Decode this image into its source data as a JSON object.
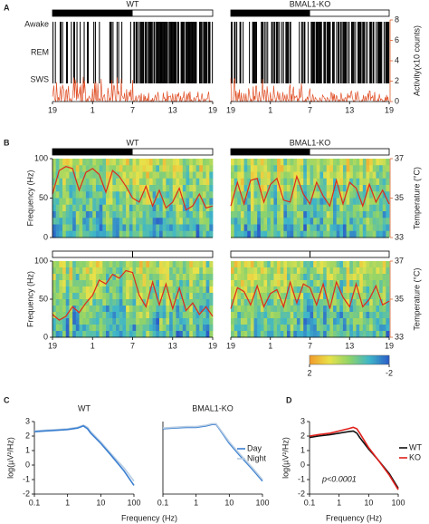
{
  "panel_labels": [
    "A",
    "B",
    "C",
    "D"
  ],
  "chart_data": [
    {
      "type": "hypnogram",
      "title": "WT",
      "title_color": "#000000",
      "bar": "LD",
      "dark_phase": [
        0,
        12
      ],
      "states": [
        "Awake",
        "REM",
        "SWS"
      ],
      "color": "#e0522a",
      "xlim": [
        0,
        24
      ],
      "xticks": [
        {
          "value": 0,
          "label": "19"
        },
        {
          "value": 6,
          "label": "1"
        },
        {
          "value": 12,
          "label": "7"
        },
        {
          "value": 18,
          "label": "13"
        },
        {
          "value": 24,
          "label": "19"
        }
      ]
    },
    {
      "type": "hypnogram",
      "title": "BMAL1-KO",
      "title_color": "#e0201c",
      "bar": "LD",
      "dark_phase": [
        0,
        12
      ],
      "color": "#e0522a",
      "xlim": [
        0,
        24
      ],
      "xticks": [
        {
          "value": 0,
          "label": "19"
        },
        {
          "value": 6,
          "label": "1"
        },
        {
          "value": 12,
          "label": "7"
        },
        {
          "value": 18,
          "label": "13"
        },
        {
          "value": 24,
          "label": "19"
        }
      ],
      "y2label": "Activity(x10 counts)",
      "y2lim": [
        0,
        8
      ],
      "y2ticks": [
        0,
        2,
        4,
        6,
        8
      ],
      "y2color": "#e0602a"
    },
    {
      "type": "spectrogram",
      "title": "WT",
      "title_color": "#000000",
      "bar": "LD",
      "dark_phase": [
        0,
        12
      ],
      "xlim": [
        0,
        24
      ],
      "ylabel": "Frequency (Hz)",
      "ylim": [
        0,
        100
      ],
      "yticks": [
        0,
        50,
        100
      ],
      "y2lim": [
        33,
        37
      ],
      "color": "#e02a1a",
      "x": [
        0,
        1,
        2,
        3,
        4,
        5,
        6,
        7,
        8,
        9,
        10,
        11,
        12,
        13,
        14,
        15,
        16,
        17,
        18,
        19,
        20,
        21,
        22,
        23,
        24
      ],
      "values": [
        35.2,
        36.4,
        36.6,
        36.5,
        35.4,
        36.3,
        36.5,
        36.2,
        35.3,
        36.4,
        36.1,
        35.6,
        35.0,
        34.8,
        35.6,
        34.6,
        35.4,
        34.5,
        34.8,
        35.5,
        34.4,
        34.6,
        35.2,
        34.5,
        34.6
      ]
    },
    {
      "type": "spectrogram",
      "title": "BMAL1-KO",
      "title_color": "#e0201c",
      "bar": "LD",
      "dark_phase": [
        0,
        12
      ],
      "xlim": [
        0,
        24
      ],
      "ylim": [
        0,
        100
      ],
      "y2label": "Temperature (°C)",
      "y2lim": [
        33,
        37
      ],
      "y2ticks": [
        33,
        35,
        37
      ],
      "y2color": "#e0602a",
      "color": "#e02a1a",
      "x": [
        0,
        1,
        2,
        3,
        4,
        5,
        6,
        7,
        8,
        9,
        10,
        11,
        12,
        13,
        14,
        15,
        16,
        17,
        18,
        19,
        20,
        21,
        22,
        23,
        24
      ],
      "values": [
        34.6,
        35.8,
        34.7,
        35.9,
        36.0,
        34.8,
        35.7,
        36.0,
        34.9,
        34.8,
        36.1,
        35.2,
        34.7,
        35.8,
        35.1,
        34.6,
        35.9,
        34.7,
        35.8,
        35.5,
        34.6,
        35.7,
        34.8,
        35.4,
        34.7
      ]
    },
    {
      "type": "spectrogram",
      "bar": "DD",
      "xlim": [
        0,
        24
      ],
      "ylabel": "Frequency (Hz)",
      "ylim": [
        0,
        100
      ],
      "yticks": [
        0,
        50,
        100
      ],
      "y2lim": [
        33,
        37
      ],
      "color": "#e02a1a",
      "xticks": [
        {
          "value": 0,
          "label": "19"
        },
        {
          "value": 6,
          "label": "1"
        },
        {
          "value": 12,
          "label": "7"
        },
        {
          "value": 18,
          "label": "13"
        },
        {
          "value": 24,
          "label": "19"
        }
      ],
      "x": [
        0,
        1,
        2,
        3,
        4,
        5,
        6,
        7,
        8,
        9,
        10,
        11,
        12,
        13,
        14,
        15,
        16,
        17,
        18,
        19,
        20,
        21,
        22,
        23,
        24
      ],
      "values": [
        34.2,
        33.9,
        34.1,
        34.6,
        34.3,
        34.8,
        35.2,
        36.0,
        35.8,
        36.3,
        36.1,
        36.5,
        36.4,
        35.2,
        34.6,
        35.9,
        34.7,
        35.8,
        34.5,
        35.6,
        34.4,
        34.8,
        34.2,
        34.6,
        34.1
      ]
    },
    {
      "type": "spectrogram",
      "bar": "DD",
      "xlim": [
        0,
        24
      ],
      "ylim": [
        0,
        100
      ],
      "y2label": "Temperature (°C)",
      "y2lim": [
        33,
        37
      ],
      "y2ticks": [
        33,
        35,
        37
      ],
      "y2color": "#e0602a",
      "color": "#e02a1a",
      "xticks": [
        {
          "value": 0,
          "label": "19"
        },
        {
          "value": 6,
          "label": "1"
        },
        {
          "value": 12,
          "label": "7"
        },
        {
          "value": 18,
          "label": "13"
        },
        {
          "value": 24,
          "label": "19"
        }
      ],
      "x": [
        0,
        1,
        2,
        3,
        4,
        5,
        6,
        7,
        8,
        9,
        10,
        11,
        12,
        13,
        14,
        15,
        16,
        17,
        18,
        19,
        20,
        21,
        22,
        23,
        24
      ],
      "values": [
        34.5,
        35.6,
        35.4,
        34.7,
        35.7,
        34.6,
        35.3,
        35.5,
        34.6,
        35.9,
        34.8,
        35.8,
        35.6,
        34.7,
        35.8,
        34.5,
        35.9,
        35.1,
        34.6,
        35.8,
        34.6,
        35.0,
        35.7,
        34.7,
        34.9
      ]
    },
    {
      "type": "colorbar",
      "xlim": [
        2,
        -2
      ],
      "xticks": [
        2,
        -2
      ],
      "colors": [
        "#f39a2a",
        "#e8e24a",
        "#8fd36a",
        "#3fb6c8",
        "#2a5cc8"
      ]
    },
    {
      "type": "line",
      "title": "WT",
      "title_color": "#000000",
      "xlabel": "Frequency (Hz)",
      "ylabel": "log(µV²/Hz)",
      "log_x": true,
      "xlim": [
        0.1,
        100
      ],
      "xticks": [
        0.1,
        1,
        10,
        100
      ],
      "ylim": [
        -2,
        3
      ],
      "yticks": [
        -2,
        -1,
        0,
        1,
        2,
        3
      ],
      "x": [
        0.1,
        0.2,
        0.5,
        1,
        2,
        3,
        4,
        5,
        10,
        20,
        50,
        100
      ],
      "series": [
        {
          "color": "#b8cde3",
          "values": [
            2.35,
            2.4,
            2.45,
            2.5,
            2.6,
            2.75,
            2.6,
            2.3,
            1.6,
            0.8,
            -0.2,
            -1.1
          ]
        },
        {
          "color": "#3a7fd0",
          "values": [
            2.3,
            2.35,
            2.4,
            2.45,
            2.55,
            2.7,
            2.5,
            2.2,
            1.5,
            0.7,
            -0.4,
            -1.4
          ]
        }
      ]
    },
    {
      "type": "line",
      "title": "BMAL1-KO",
      "title_color": "#e0201c",
      "log_x": true,
      "xlim": [
        0.1,
        100
      ],
      "xticks": [
        0.1,
        1,
        10,
        100
      ],
      "ylim": [
        -2,
        3
      ],
      "legend": "top-right",
      "x": [
        0.1,
        0.2,
        0.5,
        1,
        2,
        3,
        4,
        5,
        10,
        20,
        50,
        100
      ],
      "series": [
        {
          "name": "Day",
          "color": "#3a7fd0",
          "values": [
            2.5,
            2.55,
            2.6,
            2.6,
            2.7,
            2.8,
            2.8,
            2.5,
            1.5,
            0.7,
            -0.3,
            -1.1
          ]
        },
        {
          "name": "Night",
          "color": "#b8cde3",
          "values": [
            2.55,
            2.6,
            2.65,
            2.65,
            2.75,
            2.85,
            2.85,
            2.55,
            1.6,
            0.8,
            -0.2,
            -1.0
          ]
        }
      ]
    },
    {
      "type": "line",
      "xlabel": "Frequency (Hz)",
      "ylabel": "log(µV²/Hz)",
      "log_x": true,
      "xlim": [
        0.1,
        100
      ],
      "xticks": [
        0.1,
        1,
        10,
        100
      ],
      "ylim": [
        -2,
        3
      ],
      "yticks": [
        -2,
        -1,
        0,
        1,
        2,
        3
      ],
      "legend": "right",
      "annotation": "p<0.0001",
      "x": [
        0.1,
        0.2,
        0.5,
        1,
        2,
        3,
        4,
        5,
        10,
        20,
        50,
        100
      ],
      "series": [
        {
          "name": "WT",
          "color": "#111111",
          "values": [
            1.9,
            2.0,
            2.1,
            2.2,
            2.3,
            2.35,
            2.2,
            1.9,
            1.1,
            0.4,
            -0.6,
            -1.6
          ]
        },
        {
          "name": "KO",
          "color": "#e0201c",
          "values": [
            2.0,
            2.1,
            2.2,
            2.35,
            2.5,
            2.6,
            2.5,
            2.2,
            1.2,
            0.4,
            -0.7,
            -1.7
          ]
        }
      ]
    }
  ]
}
